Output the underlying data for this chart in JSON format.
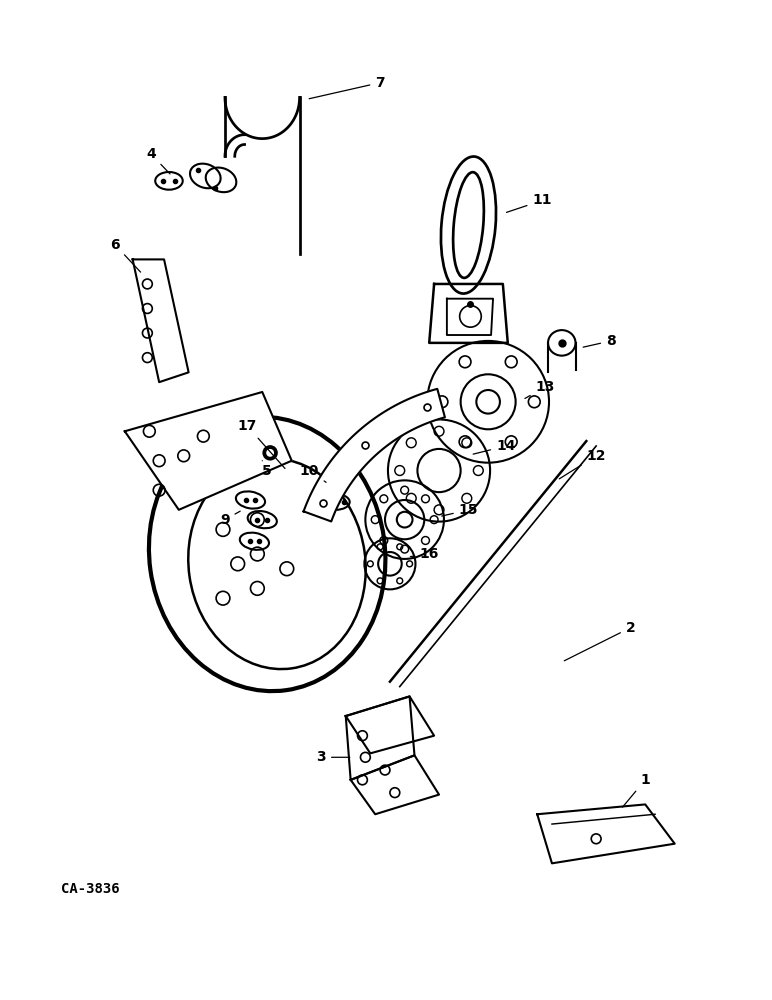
{
  "background_color": "#ffffff",
  "line_color": "#000000",
  "fig_width": 7.72,
  "fig_height": 10.0,
  "dpi": 100,
  "caption": "CA-3836",
  "caption_fontsize": 10,
  "caption_fontweight": "bold"
}
